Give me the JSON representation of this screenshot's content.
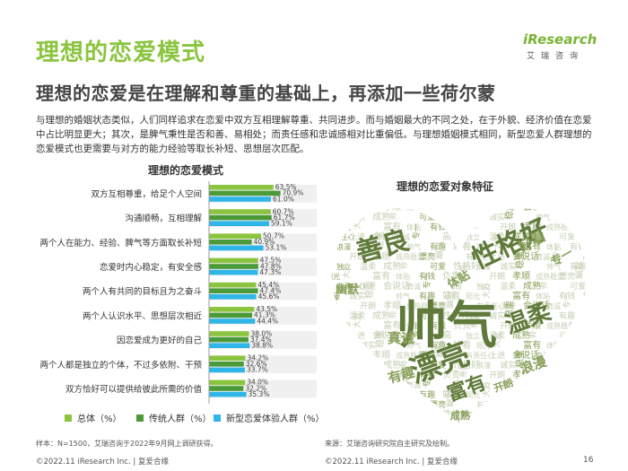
{
  "page": {
    "title": "理想的恋爱模式",
    "subtitle": "理想的恋爱是在理解和尊重的基础上，再添加一些荷尔蒙",
    "description": "与理想的婚姻状态类似，人们同样追求在恋爱中双方互相理解尊重、共同进步。而与婚姻最大的不同之处，在于外貌、经济价值在恋爱中占比明显更大；其次，是脾气秉性是否和善、易相处；而责任感和忠诚感相对比重偏低。与理想婚姻模式相同，新型恋爱人群理想的恋爱模式也更需要与对方的能力经验等取长补短、思想层次匹配。",
    "footnote_left": "样本：N=1500，艾瑞咨询于2022年9月网上调研获得。",
    "footnote_right": "来源：艾瑞咨询研究院自主研究及绘制。",
    "footer_left": "©2022.11 iResearch Inc. | 复爱合缘",
    "footer_right": "©2022.11 iResearch Inc. | 复爱合缘",
    "page_number": "16"
  },
  "logo": {
    "main": "iResearch",
    "sub": "艾瑞咨询"
  },
  "colors": {
    "total": "#8bc43f",
    "traditional": "#4a9a3a",
    "new": "#2fb5e8",
    "cloud_dark": "#5f7a3a",
    "cloud_mid": "#8aa05a",
    "cloud_light": "#c6cfb4"
  },
  "chart_data": [
    {
      "type": "bar",
      "orientation": "horizontal",
      "title": "理想的恋爱模式",
      "categories": [
        "双方互相尊重，给足个人空间",
        "沟通顺畅，互相理解",
        "两个人在能力、经验、脾气等方面取长补短",
        "恋爱时内心稳定，有安全感",
        "两个人有共同的目标且为之奋斗",
        "两个人认识水平、思想层次相近",
        "因恋爱成为更好的自己",
        "两个人都是独立的个体，不过多依附、干预",
        "双方恰好可以提供给彼此所需的价值"
      ],
      "series": [
        {
          "name": "总体（%）",
          "values": [
            63.5,
            60.7,
            50.7,
            47.5,
            45.4,
            43.5,
            38.0,
            34.2,
            34.0
          ]
        },
        {
          "name": "传统人群（%）",
          "values": [
            70.9,
            61.7,
            40.9,
            47.8,
            47.4,
            41.3,
            37.4,
            32.6,
            32.2
          ]
        },
        {
          "name": "新型恋爱体验人群（%）",
          "values": [
            61.0,
            59.1,
            53.1,
            47.3,
            45.6,
            44.4,
            38.8,
            33.7,
            35.3
          ]
        }
      ],
      "value_labels": [
        [
          "63.5%",
          "70.9%",
          "61.0%"
        ],
        [
          "60.7%",
          "61.7%",
          "59.1%"
        ],
        [
          "50.7%",
          "40.9%",
          "53.1%"
        ],
        [
          "47.5%",
          "47.8%",
          "47.3%"
        ],
        [
          "45.4%",
          "47.4%",
          "45.6%"
        ],
        [
          "43.5%",
          "41.3%",
          "44.4%"
        ],
        [
          "38.0%",
          "37.4%",
          "38.8%"
        ],
        [
          "34.2%",
          "32.6%",
          "33.7%"
        ],
        [
          "34.0%",
          "32.2%",
          "35.3%"
        ]
      ],
      "legend": "bottom",
      "grid": false
    },
    {
      "type": "wordcloud",
      "title": "理想的恋爱对象特征",
      "shape": "heart",
      "words": [
        "帅气",
        "漂亮",
        "性格好",
        "善良",
        "温柔",
        "富有",
        "真诚",
        "有趣",
        "幽默",
        "浪漫",
        "开朗",
        "成熟",
        "体贴",
        "专一",
        "好看",
        "有责任心",
        "诚实",
        "孝顺",
        "帅",
        "有钱",
        "高",
        "阳光",
        "上进",
        "稳重",
        "成熟稳重",
        "可爱",
        "负责",
        "独立",
        "大方",
        "会说话"
      ]
    }
  ]
}
